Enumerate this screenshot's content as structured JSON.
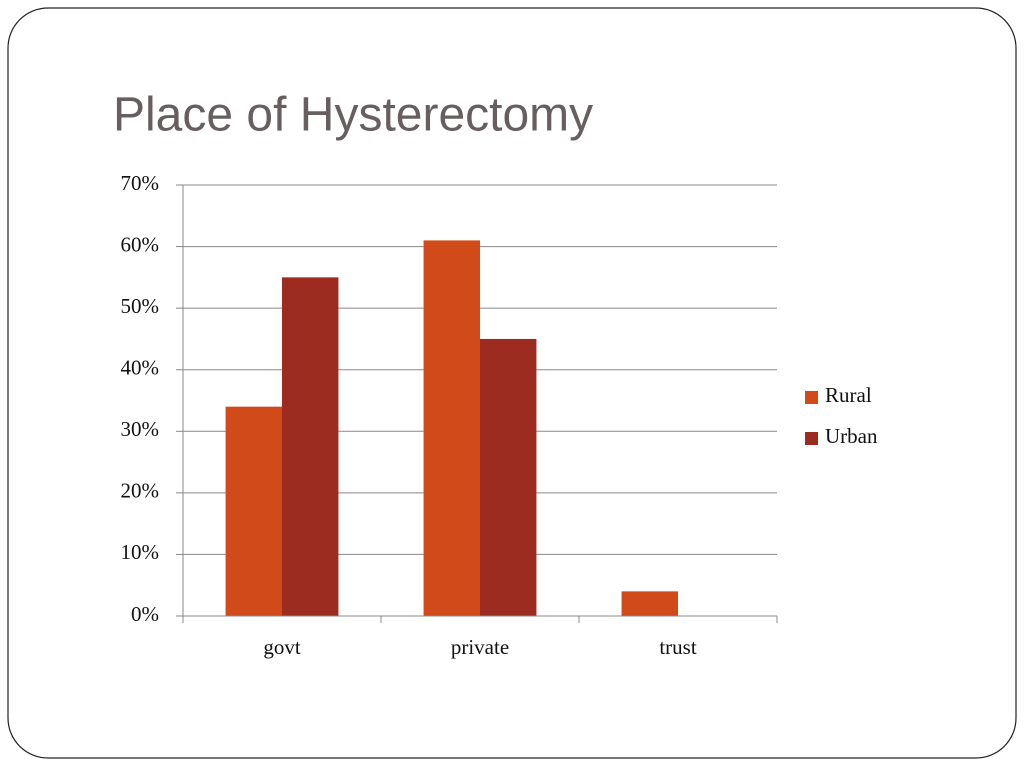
{
  "chart_data": {
    "type": "bar",
    "title": "Place of Hysterectomy",
    "categories": [
      "govt",
      "private",
      "trust"
    ],
    "series": [
      {
        "name": "Rural",
        "color": "#d04a1a",
        "values": [
          34,
          61,
          4
        ]
      },
      {
        "name": "Urban",
        "color": "#9c2b20",
        "values": [
          55,
          45,
          0
        ]
      }
    ],
    "ylim": [
      0,
      70
    ],
    "yticks": [
      {
        "value": 0,
        "label": "0%"
      },
      {
        "value": 10,
        "label": "10%"
      },
      {
        "value": 20,
        "label": "20%"
      },
      {
        "value": 30,
        "label": "30%"
      },
      {
        "value": 40,
        "label": "40%"
      },
      {
        "value": 50,
        "label": "50%"
      },
      {
        "value": 60,
        "label": "60%"
      },
      {
        "value": 70,
        "label": "70%"
      }
    ],
    "grid": true,
    "legend": "right"
  }
}
